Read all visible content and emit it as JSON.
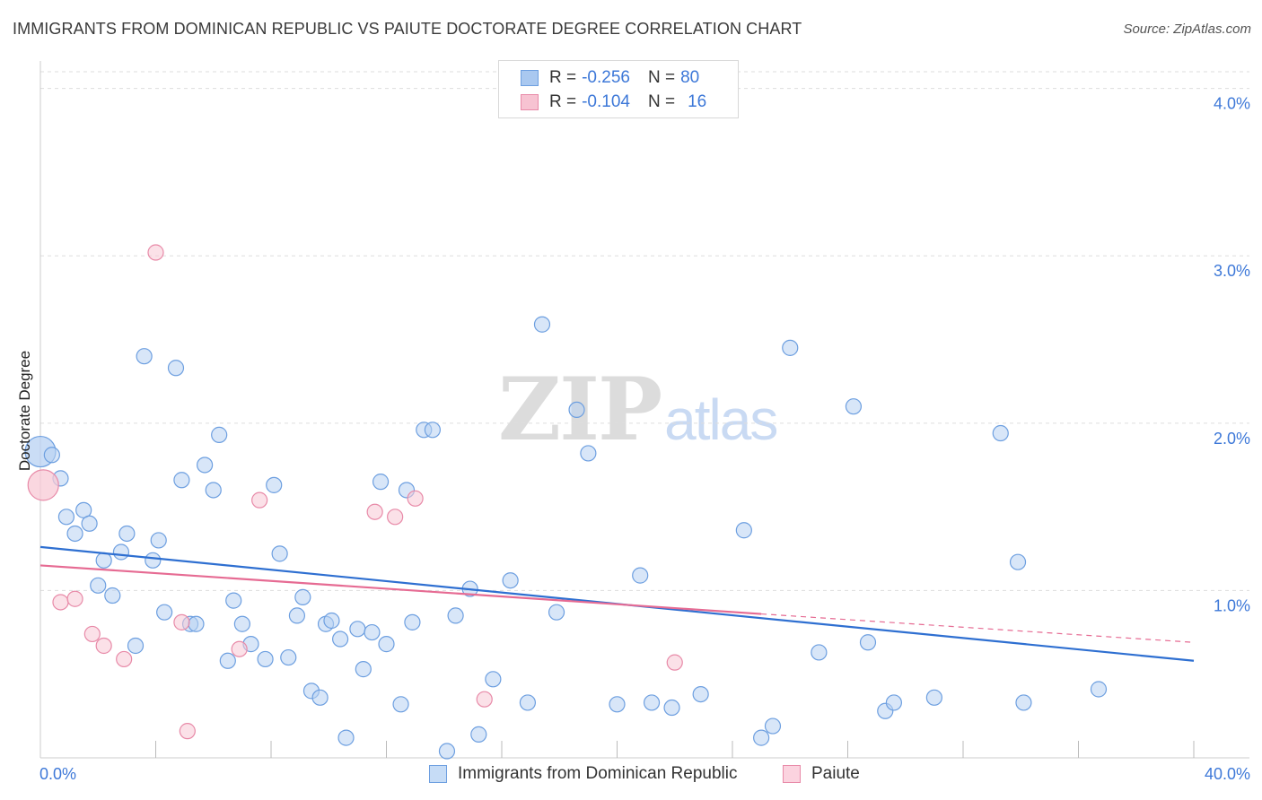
{
  "title": "IMMIGRANTS FROM DOMINICAN REPUBLIC VS PAIUTE DOCTORATE DEGREE CORRELATION CHART",
  "source": "Source: ZipAtlas.com",
  "watermark": {
    "zip": "ZIP",
    "atlas": "atlas"
  },
  "legend": {
    "rows": [
      {
        "r_label": "R =",
        "r_value": "-0.256",
        "n_label": "N =",
        "n_value": "80",
        "color": "#a9c8f0",
        "border": "#6d9fe0"
      },
      {
        "r_label": "R =",
        "r_value": "-0.104",
        "n_label": "N =",
        "n_value": "16",
        "color": "#f7c3d2",
        "border": "#e88aa8"
      }
    ]
  },
  "bottom_legend": [
    {
      "label": "Immigrants from Dominican Republic",
      "color": "#c6dcf6",
      "border": "#6d9fe0"
    },
    {
      "label": "Paiute",
      "color": "#fbd3df",
      "border": "#e88aa8"
    }
  ],
  "colors": {
    "blue_fill": "#b8d2f3",
    "blue_stroke": "#6d9fe0",
    "blue_line": "#2e6fd1",
    "pink_fill": "#f8c9d6",
    "pink_stroke": "#e88aa8",
    "pink_line": "#e66b93",
    "tick_text": "#3d78d8",
    "grid": "#dddddd"
  },
  "chart_data": {
    "type": "scatter",
    "title": "IMMIGRANTS FROM DOMINICAN REPUBLIC VS PAIUTE DOCTORATE DEGREE CORRELATION CHART",
    "xlabel": "",
    "ylabel": "Doctorate Degree",
    "xlim": [
      0,
      40
    ],
    "ylim": [
      0,
      4.1
    ],
    "x_tick_labels": [
      {
        "value": 0,
        "label": "0.0%"
      },
      {
        "value": 40,
        "label": "40.0%"
      }
    ],
    "y_tick_labels": [
      {
        "value": 1,
        "label": "1.0%"
      },
      {
        "value": 2,
        "label": "2.0%"
      },
      {
        "value": 3,
        "label": "3.0%"
      },
      {
        "value": 4,
        "label": "4.0%"
      }
    ],
    "series": [
      {
        "name": "Immigrants from Dominican Republic",
        "trend": {
          "x": [
            0,
            40
          ],
          "y": [
            1.26,
            0.58
          ]
        },
        "points": [
          {
            "x": 0.0,
            "y": 1.83,
            "big": true
          },
          {
            "x": 0.4,
            "y": 1.81
          },
          {
            "x": 0.7,
            "y": 1.67
          },
          {
            "x": 0.9,
            "y": 1.44
          },
          {
            "x": 1.2,
            "y": 1.34
          },
          {
            "x": 1.5,
            "y": 1.48
          },
          {
            "x": 1.7,
            "y": 1.4
          },
          {
            "x": 2.0,
            "y": 1.03
          },
          {
            "x": 2.2,
            "y": 1.18
          },
          {
            "x": 2.5,
            "y": 0.97
          },
          {
            "x": 2.8,
            "y": 1.23
          },
          {
            "x": 3.0,
            "y": 1.34
          },
          {
            "x": 3.3,
            "y": 0.67
          },
          {
            "x": 3.6,
            "y": 2.4
          },
          {
            "x": 3.9,
            "y": 1.18
          },
          {
            "x": 4.1,
            "y": 1.3
          },
          {
            "x": 4.3,
            "y": 0.87
          },
          {
            "x": 4.7,
            "y": 2.33
          },
          {
            "x": 4.9,
            "y": 1.66
          },
          {
            "x": 5.2,
            "y": 0.8
          },
          {
            "x": 5.4,
            "y": 0.8
          },
          {
            "x": 5.7,
            "y": 1.75
          },
          {
            "x": 6.0,
            "y": 1.6
          },
          {
            "x": 6.2,
            "y": 1.93
          },
          {
            "x": 6.5,
            "y": 0.58
          },
          {
            "x": 6.7,
            "y": 0.94
          },
          {
            "x": 7.0,
            "y": 0.8
          },
          {
            "x": 7.3,
            "y": 0.68
          },
          {
            "x": 7.8,
            "y": 0.59
          },
          {
            "x": 8.1,
            "y": 1.63
          },
          {
            "x": 8.3,
            "y": 1.22
          },
          {
            "x": 8.6,
            "y": 0.6
          },
          {
            "x": 8.9,
            "y": 0.85
          },
          {
            "x": 9.1,
            "y": 0.96
          },
          {
            "x": 9.4,
            "y": 0.4
          },
          {
            "x": 9.7,
            "y": 0.36
          },
          {
            "x": 9.9,
            "y": 0.8
          },
          {
            "x": 10.1,
            "y": 0.82
          },
          {
            "x": 10.4,
            "y": 0.71
          },
          {
            "x": 10.6,
            "y": 0.12
          },
          {
            "x": 11.0,
            "y": 0.77
          },
          {
            "x": 11.2,
            "y": 0.53
          },
          {
            "x": 11.5,
            "y": 0.75
          },
          {
            "x": 11.8,
            "y": 1.65
          },
          {
            "x": 12.0,
            "y": 0.68
          },
          {
            "x": 12.5,
            "y": 0.32
          },
          {
            "x": 12.7,
            "y": 1.6
          },
          {
            "x": 12.9,
            "y": 0.81
          },
          {
            "x": 13.3,
            "y": 1.96
          },
          {
            "x": 13.6,
            "y": 1.96
          },
          {
            "x": 14.1,
            "y": 0.04
          },
          {
            "x": 14.4,
            "y": 0.85
          },
          {
            "x": 14.9,
            "y": 1.01
          },
          {
            "x": 15.2,
            "y": 0.14
          },
          {
            "x": 15.7,
            "y": 0.47
          },
          {
            "x": 16.3,
            "y": 1.06
          },
          {
            "x": 16.9,
            "y": 0.33
          },
          {
            "x": 17.4,
            "y": 2.59
          },
          {
            "x": 17.9,
            "y": 0.87
          },
          {
            "x": 18.6,
            "y": 2.08
          },
          {
            "x": 19.0,
            "y": 1.82
          },
          {
            "x": 20.0,
            "y": 0.32
          },
          {
            "x": 20.8,
            "y": 1.09
          },
          {
            "x": 21.2,
            "y": 0.33
          },
          {
            "x": 21.9,
            "y": 0.3
          },
          {
            "x": 22.9,
            "y": 0.38
          },
          {
            "x": 24.4,
            "y": 1.36
          },
          {
            "x": 25.0,
            "y": 0.12
          },
          {
            "x": 25.4,
            "y": 0.19
          },
          {
            "x": 26.0,
            "y": 2.45
          },
          {
            "x": 27.0,
            "y": 0.63
          },
          {
            "x": 28.2,
            "y": 2.1
          },
          {
            "x": 28.7,
            "y": 0.69
          },
          {
            "x": 29.3,
            "y": 0.28
          },
          {
            "x": 29.6,
            "y": 0.33
          },
          {
            "x": 31.0,
            "y": 0.36
          },
          {
            "x": 33.3,
            "y": 1.94
          },
          {
            "x": 33.9,
            "y": 1.17
          },
          {
            "x": 34.1,
            "y": 0.33
          },
          {
            "x": 36.7,
            "y": 0.41
          }
        ]
      },
      {
        "name": "Paiute",
        "trend": {
          "x": [
            0,
            25
          ],
          "y": [
            1.15,
            0.86
          ]
        },
        "trend_dashed": {
          "x": [
            25,
            40
          ],
          "y": [
            0.86,
            0.69
          ]
        },
        "points": [
          {
            "x": 0.1,
            "y": 1.63,
            "big": true
          },
          {
            "x": 0.7,
            "y": 0.93
          },
          {
            "x": 1.2,
            "y": 0.95
          },
          {
            "x": 1.8,
            "y": 0.74
          },
          {
            "x": 2.2,
            "y": 0.67
          },
          {
            "x": 2.9,
            "y": 0.59
          },
          {
            "x": 4.0,
            "y": 3.02
          },
          {
            "x": 4.9,
            "y": 0.81
          },
          {
            "x": 5.1,
            "y": 0.16
          },
          {
            "x": 6.9,
            "y": 0.65
          },
          {
            "x": 7.6,
            "y": 1.54
          },
          {
            "x": 11.6,
            "y": 1.47
          },
          {
            "x": 12.3,
            "y": 1.44
          },
          {
            "x": 13.0,
            "y": 1.55
          },
          {
            "x": 15.4,
            "y": 0.35
          },
          {
            "x": 22.0,
            "y": 0.57
          }
        ]
      }
    ]
  }
}
